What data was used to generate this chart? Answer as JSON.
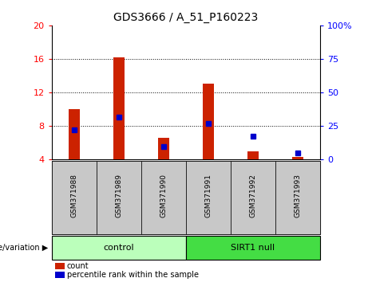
{
  "title": "GDS3666 / A_51_P160223",
  "samples": [
    "GSM371988",
    "GSM371989",
    "GSM371990",
    "GSM371991",
    "GSM371992",
    "GSM371993"
  ],
  "red_bar_tops": [
    10.0,
    16.2,
    6.6,
    13.0,
    5.0,
    4.3
  ],
  "blue_square_y_left": [
    7.5,
    9.0,
    5.5,
    8.3,
    6.8,
    4.8
  ],
  "bar_bottom": 4.0,
  "ylim_left": [
    4,
    20
  ],
  "ylim_right": [
    0,
    100
  ],
  "yticks_left": [
    4,
    8,
    12,
    16,
    20
  ],
  "yticks_right": [
    0,
    25,
    50,
    75,
    100
  ],
  "ytick_labels_right": [
    "0",
    "25",
    "50",
    "75",
    "100%"
  ],
  "bar_color": "#cc2200",
  "blue_color": "#0000cc",
  "control_label": "control",
  "sirt1_label": "SIRT1 null",
  "genotype_label": "genotype/variation",
  "legend_count": "count",
  "legend_percentile": "percentile rank within the sample",
  "control_color": "#bbffbb",
  "sirt1_color": "#44dd44",
  "sample_bg_color": "#c8c8c8",
  "bar_width": 0.25
}
